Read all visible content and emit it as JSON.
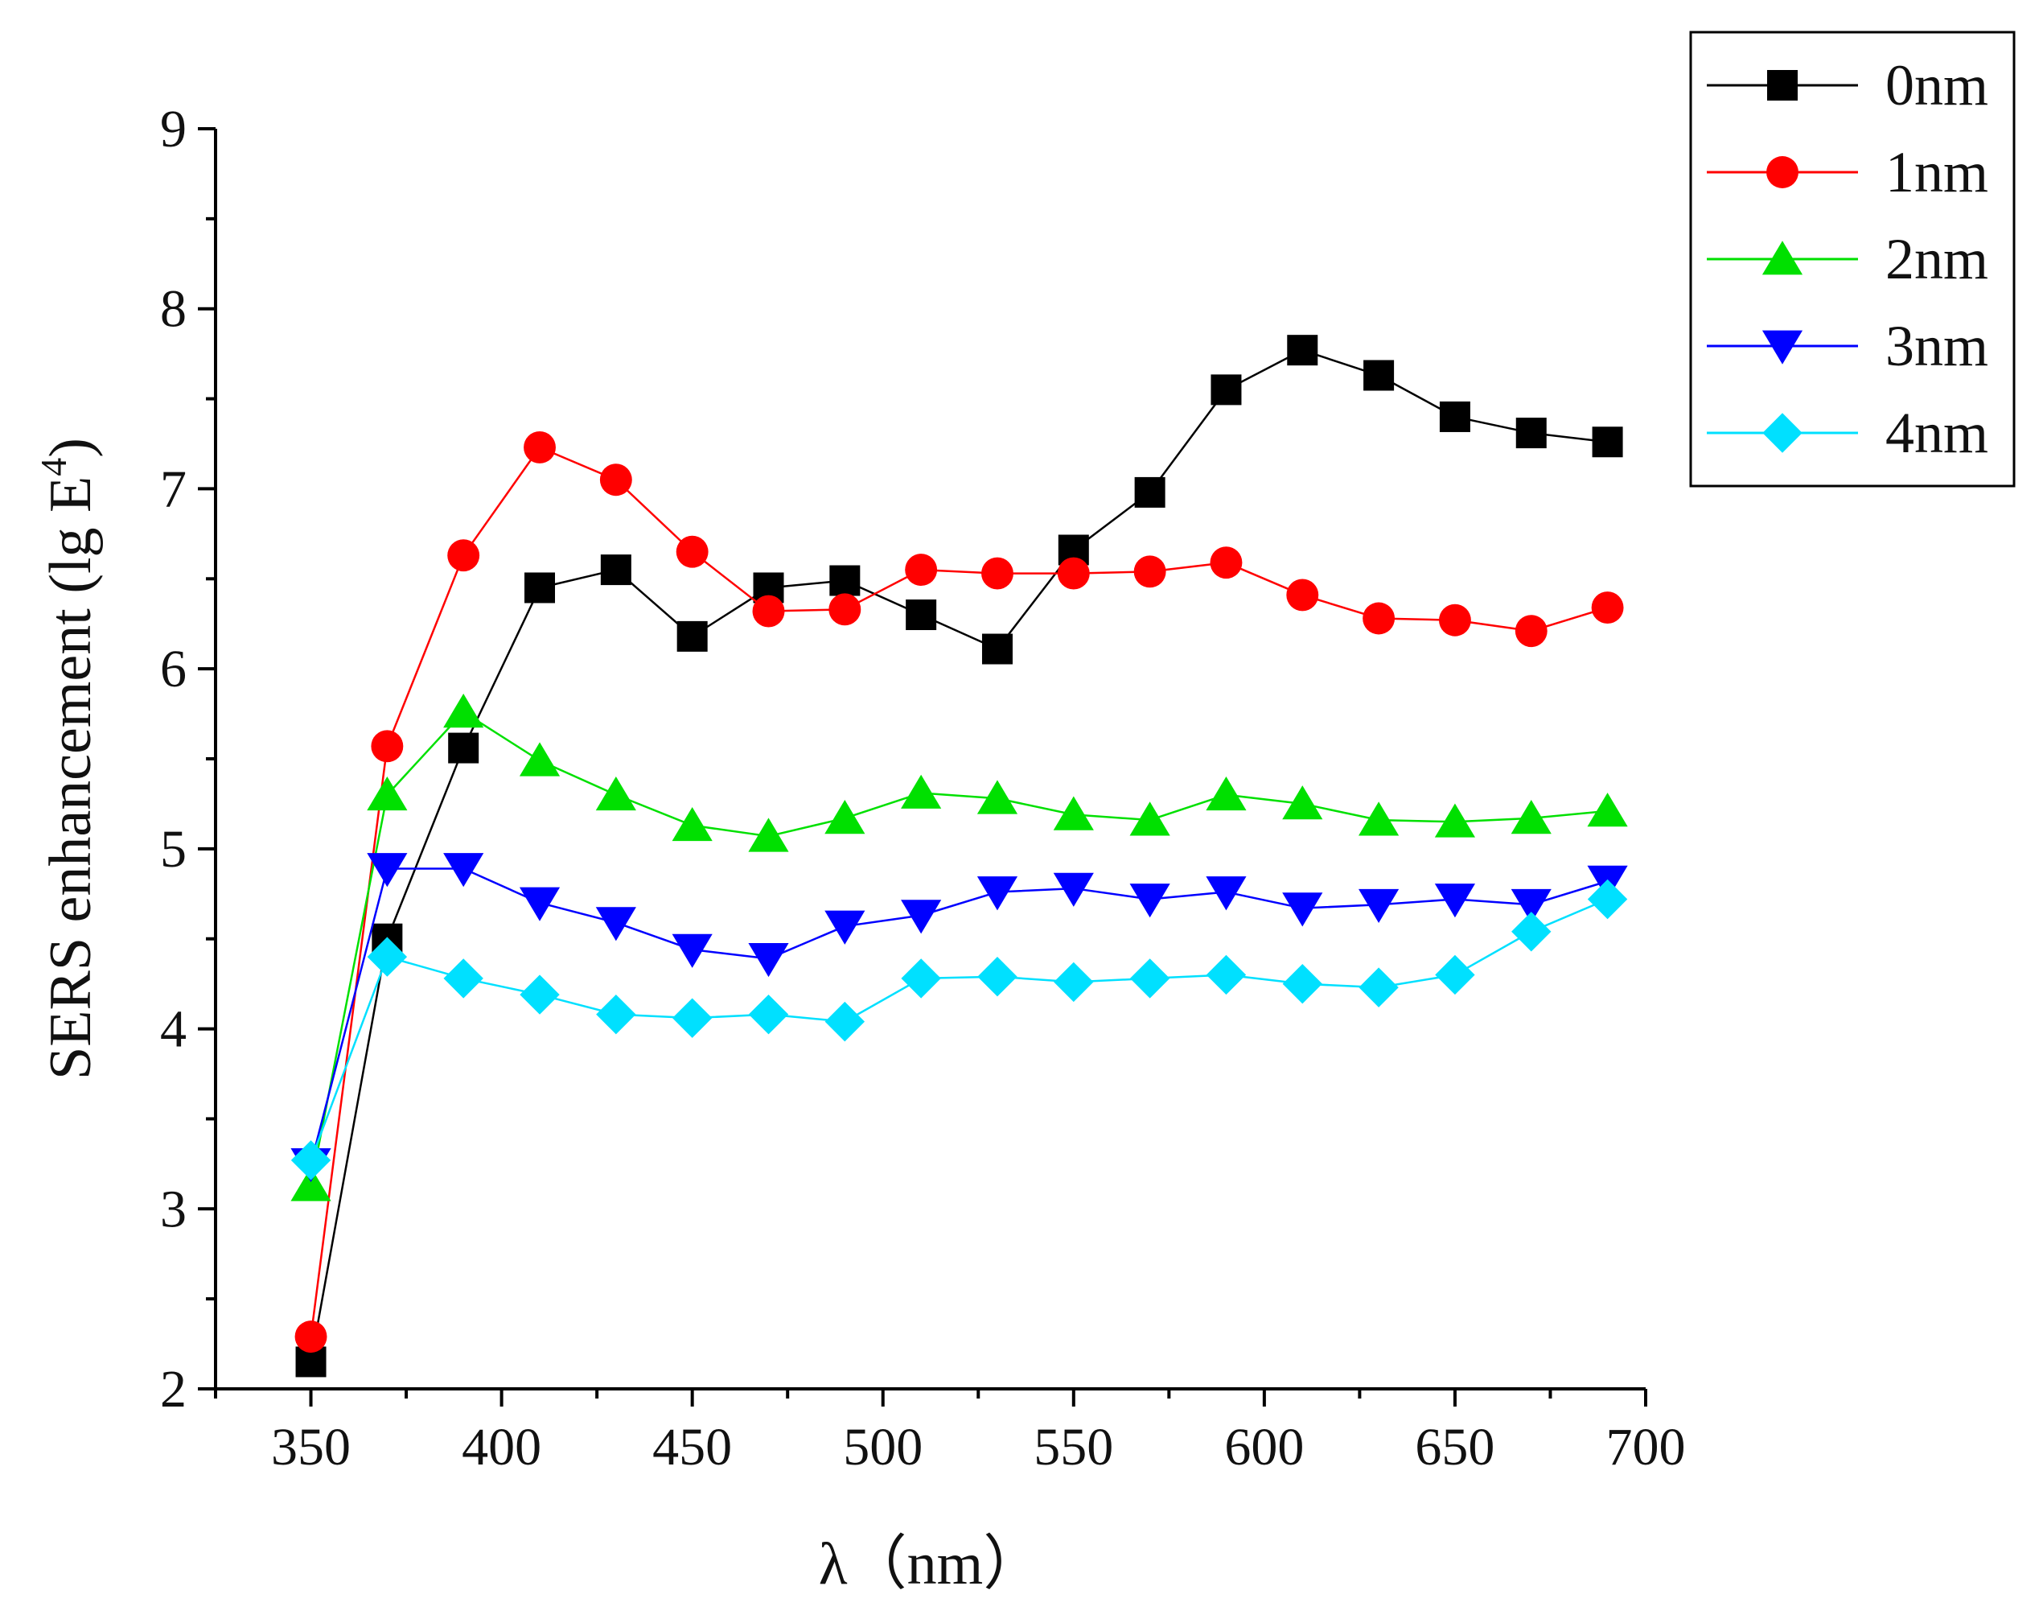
{
  "chart_data": {
    "type": "line",
    "title": "",
    "xlabel": "λ（nm）",
    "ylabel_main": "SERS enhancement (lg E",
    "ylabel_sup": "4",
    "ylabel_close": ")",
    "xlim": [
      325,
      700
    ],
    "ylim": [
      2,
      9
    ],
    "xticks": [
      350,
      400,
      450,
      500,
      550,
      600,
      650,
      700
    ],
    "yticks": [
      2,
      3,
      4,
      5,
      6,
      7,
      8,
      9
    ],
    "grid": false,
    "legend_position": "top-right",
    "x": [
      350,
      370,
      390,
      410,
      430,
      450,
      470,
      490,
      510,
      530,
      550,
      570,
      590,
      610,
      630,
      650,
      670,
      690
    ],
    "series": [
      {
        "name": "0nm",
        "color": "#000000",
        "marker": "square",
        "values": [
          2.15,
          4.5,
          5.56,
          6.45,
          6.55,
          6.18,
          6.45,
          6.49,
          6.3,
          6.11,
          6.66,
          6.98,
          7.55,
          7.77,
          7.63,
          7.4,
          7.31,
          7.26
        ]
      },
      {
        "name": "1nm",
        "color": "#ff0000",
        "marker": "circle",
        "values": [
          2.29,
          5.57,
          6.63,
          7.23,
          7.05,
          6.65,
          6.32,
          6.33,
          6.55,
          6.53,
          6.53,
          6.54,
          6.59,
          6.41,
          6.28,
          6.27,
          6.21,
          6.34
        ]
      },
      {
        "name": "2nm",
        "color": "#00e000",
        "marker": "triangle-up",
        "values": [
          3.13,
          5.3,
          5.76,
          5.49,
          5.3,
          5.13,
          5.07,
          5.17,
          5.31,
          5.28,
          5.19,
          5.16,
          5.3,
          5.25,
          5.16,
          5.15,
          5.17,
          5.21
        ]
      },
      {
        "name": "3nm",
        "color": "#0000ff",
        "marker": "triangle-down",
        "values": [
          3.25,
          4.89,
          4.89,
          4.7,
          4.59,
          4.44,
          4.39,
          4.57,
          4.63,
          4.76,
          4.78,
          4.72,
          4.76,
          4.67,
          4.69,
          4.72,
          4.69,
          4.82
        ]
      },
      {
        "name": "4nm",
        "color": "#00e0ff",
        "marker": "diamond",
        "values": [
          3.27,
          4.4,
          4.28,
          4.19,
          4.08,
          4.06,
          4.08,
          4.04,
          4.28,
          4.29,
          4.26,
          4.28,
          4.3,
          4.25,
          4.23,
          4.3,
          4.54,
          4.72
        ]
      }
    ]
  }
}
